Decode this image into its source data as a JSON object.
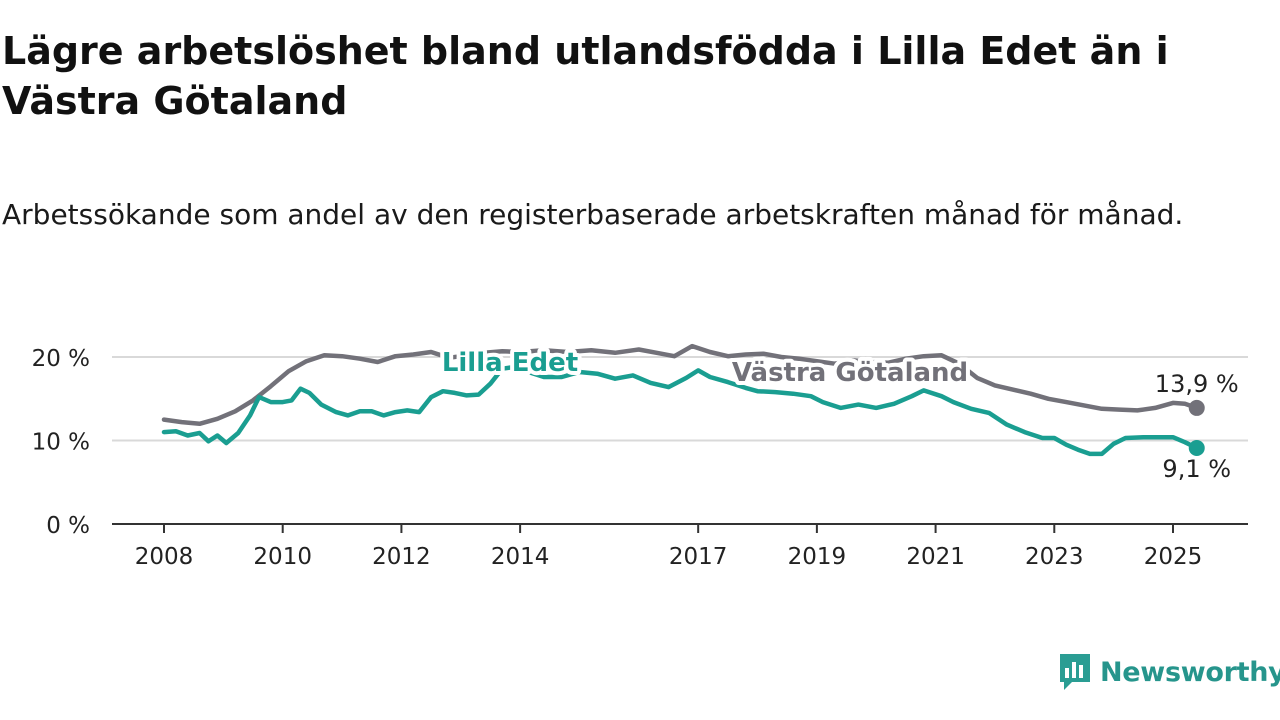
{
  "title": "Lägre arbetslöshet bland utlandsfödda i Lilla Edet än i Västra Götaland",
  "subtitle": "Arbetssökande som andel av den registerbaserade arbetskraften månad för månad.",
  "brand": {
    "name": "Newsworthy",
    "icon": "newsworthy-logo-icon",
    "color": "#2a9d93"
  },
  "chart_data": {
    "type": "line",
    "ylim": [
      0,
      20
    ],
    "yticks": [
      0,
      10,
      20
    ],
    "ytick_labels": [
      "0 %",
      "10 %",
      "20 %"
    ],
    "xlim": [
      2008,
      2025.6
    ],
    "xticks": [
      2008,
      2010,
      2012,
      2014,
      2017,
      2019,
      2021,
      2023,
      2025
    ],
    "xtick_labels": [
      "2008",
      "2010",
      "2012",
      "2014",
      "2017",
      "2019",
      "2021",
      "2023",
      "2025"
    ],
    "grid": true,
    "legend": "inline labels on lines",
    "series": [
      {
        "name": "Västra Götaland",
        "color": "#727179",
        "end_label": "13,9 %",
        "points": [
          [
            2008.0,
            12.5
          ],
          [
            2008.3,
            12.2
          ],
          [
            2008.6,
            12.0
          ],
          [
            2008.9,
            12.6
          ],
          [
            2009.2,
            13.5
          ],
          [
            2009.5,
            14.8
          ],
          [
            2009.8,
            16.5
          ],
          [
            2010.1,
            18.3
          ],
          [
            2010.4,
            19.5
          ],
          [
            2010.7,
            20.2
          ],
          [
            2011.0,
            20.1
          ],
          [
            2011.3,
            19.8
          ],
          [
            2011.6,
            19.4
          ],
          [
            2011.9,
            20.1
          ],
          [
            2012.2,
            20.3
          ],
          [
            2012.5,
            20.6
          ],
          [
            2012.8,
            19.9
          ],
          [
            2013.1,
            20.2
          ],
          [
            2013.4,
            20.5
          ],
          [
            2013.7,
            20.7
          ],
          [
            2014.0,
            20.6
          ],
          [
            2014.4,
            20.8
          ],
          [
            2014.8,
            20.6
          ],
          [
            2015.2,
            20.8
          ],
          [
            2015.6,
            20.5
          ],
          [
            2016.0,
            20.9
          ],
          [
            2016.3,
            20.5
          ],
          [
            2016.6,
            20.1
          ],
          [
            2016.9,
            21.3
          ],
          [
            2017.2,
            20.6
          ],
          [
            2017.5,
            20.1
          ],
          [
            2017.8,
            20.3
          ],
          [
            2018.1,
            20.4
          ],
          [
            2018.4,
            20.0
          ],
          [
            2018.7,
            19.8
          ],
          [
            2019.0,
            19.5
          ],
          [
            2019.3,
            19.2
          ],
          [
            2019.6,
            19.6
          ],
          [
            2019.9,
            19.4
          ],
          [
            2020.2,
            19.3
          ],
          [
            2020.5,
            19.8
          ],
          [
            2020.8,
            20.1
          ],
          [
            2021.1,
            20.2
          ],
          [
            2021.4,
            19.2
          ],
          [
            2021.7,
            17.5
          ],
          [
            2022.0,
            16.6
          ],
          [
            2022.3,
            16.1
          ],
          [
            2022.6,
            15.6
          ],
          [
            2022.9,
            15.0
          ],
          [
            2023.2,
            14.6
          ],
          [
            2023.5,
            14.2
          ],
          [
            2023.8,
            13.8
          ],
          [
            2024.1,
            13.7
          ],
          [
            2024.4,
            13.6
          ],
          [
            2024.7,
            13.9
          ],
          [
            2025.0,
            14.5
          ],
          [
            2025.2,
            14.4
          ],
          [
            2025.4,
            13.9
          ]
        ]
      },
      {
        "name": "Lilla Edet",
        "color": "#1a9e91",
        "end_label": "9,1 %",
        "points": [
          [
            2008.0,
            11.0
          ],
          [
            2008.2,
            11.1
          ],
          [
            2008.4,
            10.6
          ],
          [
            2008.6,
            10.9
          ],
          [
            2008.75,
            9.9
          ],
          [
            2008.9,
            10.6
          ],
          [
            2009.05,
            9.7
          ],
          [
            2009.25,
            10.9
          ],
          [
            2009.45,
            13.0
          ],
          [
            2009.6,
            15.2
          ],
          [
            2009.8,
            14.6
          ],
          [
            2010.0,
            14.6
          ],
          [
            2010.15,
            14.8
          ],
          [
            2010.3,
            16.2
          ],
          [
            2010.45,
            15.7
          ],
          [
            2010.65,
            14.3
          ],
          [
            2010.9,
            13.4
          ],
          [
            2011.1,
            13.0
          ],
          [
            2011.3,
            13.5
          ],
          [
            2011.5,
            13.5
          ],
          [
            2011.7,
            13.0
          ],
          [
            2011.9,
            13.4
          ],
          [
            2012.1,
            13.6
          ],
          [
            2012.3,
            13.4
          ],
          [
            2012.5,
            15.2
          ],
          [
            2012.7,
            15.9
          ],
          [
            2012.9,
            15.7
          ],
          [
            2013.1,
            15.4
          ],
          [
            2013.3,
            15.5
          ],
          [
            2013.5,
            16.8
          ],
          [
            2013.7,
            18.6
          ],
          [
            2013.9,
            18.8
          ],
          [
            2014.1,
            18.3
          ],
          [
            2014.4,
            17.6
          ],
          [
            2014.7,
            17.6
          ],
          [
            2015.0,
            18.2
          ],
          [
            2015.3,
            18.0
          ],
          [
            2015.6,
            17.4
          ],
          [
            2015.9,
            17.8
          ],
          [
            2016.2,
            16.9
          ],
          [
            2016.5,
            16.4
          ],
          [
            2016.8,
            17.5
          ],
          [
            2017.0,
            18.4
          ],
          [
            2017.2,
            17.6
          ],
          [
            2017.5,
            17.0
          ],
          [
            2017.8,
            16.3
          ],
          [
            2018.0,
            15.9
          ],
          [
            2018.3,
            15.8
          ],
          [
            2018.6,
            15.6
          ],
          [
            2018.9,
            15.3
          ],
          [
            2019.1,
            14.6
          ],
          [
            2019.4,
            13.9
          ],
          [
            2019.7,
            14.3
          ],
          [
            2020.0,
            13.9
          ],
          [
            2020.3,
            14.4
          ],
          [
            2020.6,
            15.3
          ],
          [
            2020.8,
            16.0
          ],
          [
            2021.1,
            15.3
          ],
          [
            2021.3,
            14.6
          ],
          [
            2021.6,
            13.8
          ],
          [
            2021.9,
            13.3
          ],
          [
            2022.2,
            11.9
          ],
          [
            2022.5,
            11.0
          ],
          [
            2022.8,
            10.3
          ],
          [
            2023.0,
            10.3
          ],
          [
            2023.2,
            9.5
          ],
          [
            2023.4,
            8.9
          ],
          [
            2023.6,
            8.4
          ],
          [
            2023.8,
            8.4
          ],
          [
            2024.0,
            9.6
          ],
          [
            2024.2,
            10.3
          ],
          [
            2024.5,
            10.4
          ],
          [
            2024.8,
            10.4
          ],
          [
            2025.0,
            10.4
          ],
          [
            2025.2,
            9.8
          ],
          [
            2025.4,
            9.1
          ]
        ]
      }
    ]
  }
}
